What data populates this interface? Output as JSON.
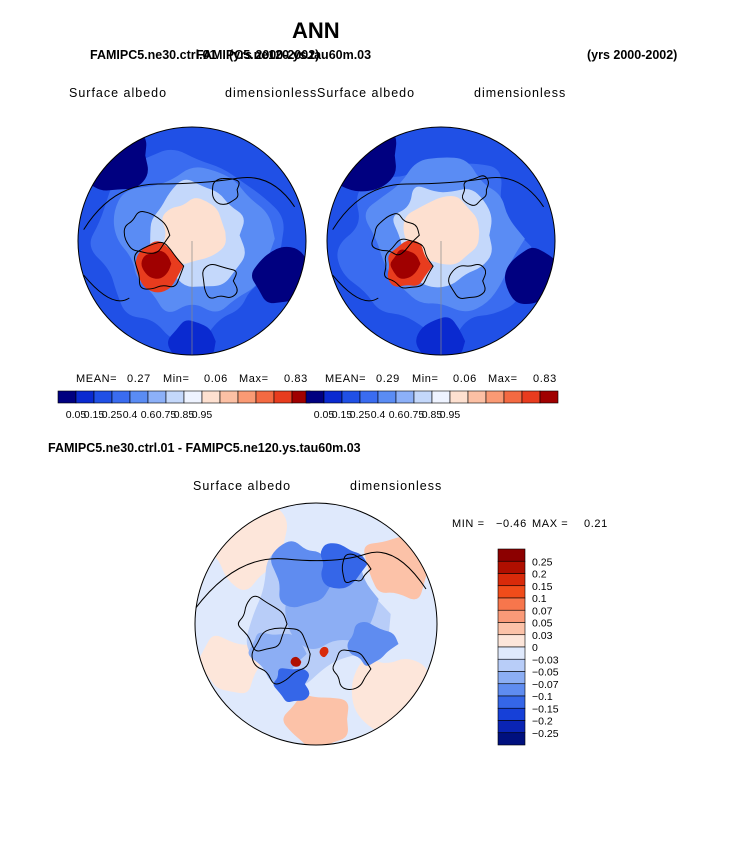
{
  "chart_data": {
    "type": "map",
    "title": "ANN",
    "panels": [
      {
        "case_label": "FAMIPC5.ne30.ctrl.01",
        "years_label": "(yrs 2000-2002)",
        "variable": "Surface albedo",
        "units": "dimensionless",
        "stats": {
          "mean_label": "MEAN=",
          "mean": "0.27",
          "min_label": "Min=",
          "min": "0.06",
          "max_label": "Max=",
          "max": "0.83"
        },
        "levels": [
          "0.05",
          "0.15",
          "0.25",
          "0.4",
          "0.6",
          "0.75",
          "0.85",
          "0.95"
        ]
      },
      {
        "case_label": "FAMIPC5.ne120.ys.tau60m.03",
        "years_label": "(yrs 2000-2002)",
        "variable": "Surface albedo",
        "units": "dimensionless",
        "stats": {
          "mean_label": "MEAN=",
          "mean": "0.29",
          "min_label": "Min=",
          "min": "0.06",
          "max_label": "Max=",
          "max": "0.83"
        },
        "levels": [
          "0.05",
          "0.15",
          "0.25",
          "0.4",
          "0.6",
          "0.75",
          "0.85",
          "0.95"
        ]
      }
    ],
    "difference": {
      "title": "FAMIPC5.ne30.ctrl.01 - FAMIPC5.ne120.ys.tau60m.03",
      "variable": "Surface albedo",
      "units": "dimensionless",
      "min_label": "MIN =",
      "min": "−0.46",
      "max_label": "MAX =",
      "max": "0.21",
      "levels": [
        "0.25",
        "0.2",
        "0.15",
        "0.1",
        "0.07",
        "0.05",
        "0.03",
        "0",
        "−0.03",
        "−0.05",
        "−0.07",
        "−0.1",
        "−0.15",
        "−0.2",
        "−0.25"
      ]
    },
    "colors": {
      "seq": [
        "#000080",
        "#0a2ad0",
        "#2050e6",
        "#3a6cf0",
        "#5a8cf4",
        "#8cb0f8",
        "#c4d8fb",
        "#eef3ff",
        "#fde0d0",
        "#fcc0a4",
        "#fa9a74",
        "#f46a42",
        "#e83c1e",
        "#a00000"
      ],
      "div": [
        "#8c0000",
        "#b00f00",
        "#d82a0a",
        "#f04c1a",
        "#f7764c",
        "#fa9a78",
        "#fcc2a8",
        "#fde6da",
        "#dfe9fc",
        "#b8cdf8",
        "#8caef4",
        "#5f8cf0",
        "#3566e8",
        "#1640d8",
        "#0a24b4",
        "#00107e"
      ]
    }
  }
}
